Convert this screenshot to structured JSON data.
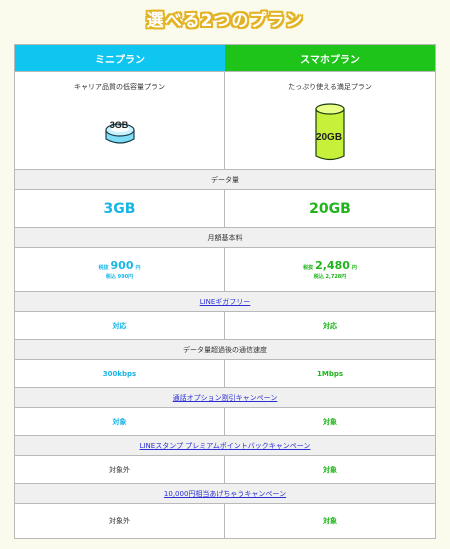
{
  "title": "選べる2つのプラン",
  "plans": {
    "mini": {
      "name": "ミニプラン",
      "description": "キャリア品質の低容量プラン",
      "image_label": "3GB",
      "data": "3GB",
      "price_tax_excluded_label": "税抜",
      "price_tax_excluded": "900",
      "price_unit": "円",
      "price_tax_included": "税込 990円",
      "line_giga_free": "対応",
      "speed": "300kbps",
      "call_option": "対象",
      "stamp_premium": "対象外",
      "cashback": "対象外"
    },
    "sumaho": {
      "name": "スマホプラン",
      "description": "たっぷり使える満足プラン",
      "image_label": "20GB",
      "data": "20GB",
      "price_tax_excluded_label": "税抜",
      "price_tax_excluded": "2,480",
      "price_unit": "円",
      "price_tax_included": "税込 2,728円",
      "line_giga_free": "対応",
      "speed": "1Mbps",
      "call_option": "対象",
      "stamp_premium": "対象",
      "cashback": "対象"
    }
  },
  "rows": {
    "data_amount": "データ量",
    "monthly_fee": "月額基本料",
    "line_giga_free": "LINEギガフリー",
    "speed_after": "データ量超過後の通信速度",
    "call_option": "通話オプション割引キャンペーン",
    "stamp_premium": "LINEスタンプ プレミアムポイントバックキャンペーン",
    "cashback": "10,000円相当あげちゃうキャンペーン"
  },
  "colors": {
    "mini_accent": "#0fc6f1",
    "sumaho_accent": "#1fc41b",
    "title_outline": "#e3b326",
    "link": "#2b2fd3"
  },
  "icons": {
    "mini_image": "storage-disk-3gb-icon",
    "sumaho_image": "storage-cylinder-20gb-icon"
  }
}
